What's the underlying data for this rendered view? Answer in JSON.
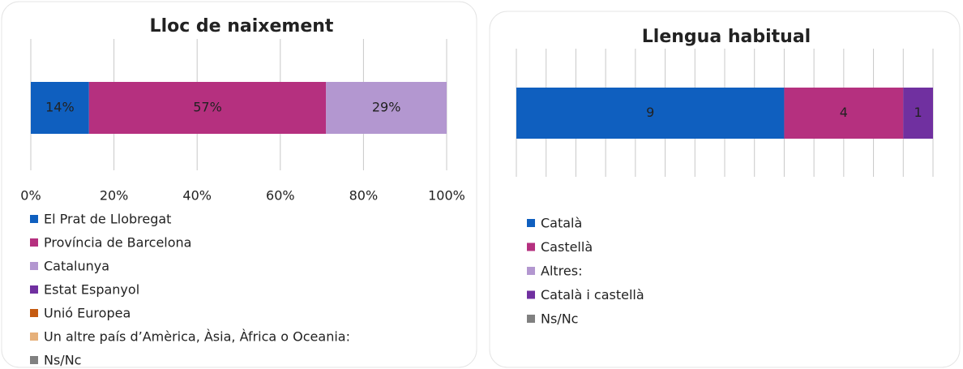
{
  "chart_data": [
    {
      "type": "stacked_bar_horizontal",
      "title": "Lloc de naixement",
      "series": [
        {
          "name": "El Prat de Llobregat",
          "color": "#0f5fbf",
          "values": [
            14
          ],
          "value_labels": [
            "14%"
          ]
        },
        {
          "name": "Província de Barcelona",
          "color": "#b5307f",
          "values": [
            57
          ],
          "value_labels": [
            "57%"
          ]
        },
        {
          "name": "Catalunya",
          "color": "#b397d0",
          "values": [
            29
          ],
          "value_labels": [
            "29%"
          ]
        },
        {
          "name": "Estat Espanyol",
          "color": "#7030a0",
          "values": [
            0
          ]
        },
        {
          "name": "Unió Europea",
          "color": "#c55a11",
          "values": [
            0
          ]
        },
        {
          "name": "Un altre país d’Amèrica, Àsia, Àfrica o Oceania:",
          "color": "#e6b07a",
          "values": [
            0
          ]
        },
        {
          "name": "Ns/Nc",
          "color": "#808080",
          "values": [
            0
          ]
        }
      ],
      "xlim": [
        0,
        100
      ],
      "xticks": [
        {
          "value": 0,
          "label": "0%"
        },
        {
          "value": 20,
          "label": "20%"
        },
        {
          "value": 40,
          "label": "40%"
        },
        {
          "value": 60,
          "label": "60%"
        },
        {
          "value": 80,
          "label": "80%"
        },
        {
          "value": 100,
          "label": "100%"
        }
      ]
    },
    {
      "type": "stacked_bar_horizontal",
      "title": "Llengua habitual",
      "series": [
        {
          "name": "Català",
          "color": "#0f5fbf",
          "values": [
            9
          ]
        },
        {
          "name": "Castellà",
          "color": "#b5307f",
          "values": [
            4
          ]
        },
        {
          "name": "Altres:",
          "color": "#b397d0",
          "values": [
            0
          ]
        },
        {
          "name": "Català i castellà",
          "color": "#7030a0",
          "values": [
            1
          ]
        },
        {
          "name": "Ns/Nc",
          "color": "#808080",
          "values": [
            0
          ]
        }
      ],
      "xlim": [
        0,
        14
      ],
      "xgrid": [
        0,
        1,
        2,
        3,
        4,
        5,
        6,
        7,
        8,
        9,
        10,
        11,
        12,
        13,
        14
      ]
    }
  ]
}
